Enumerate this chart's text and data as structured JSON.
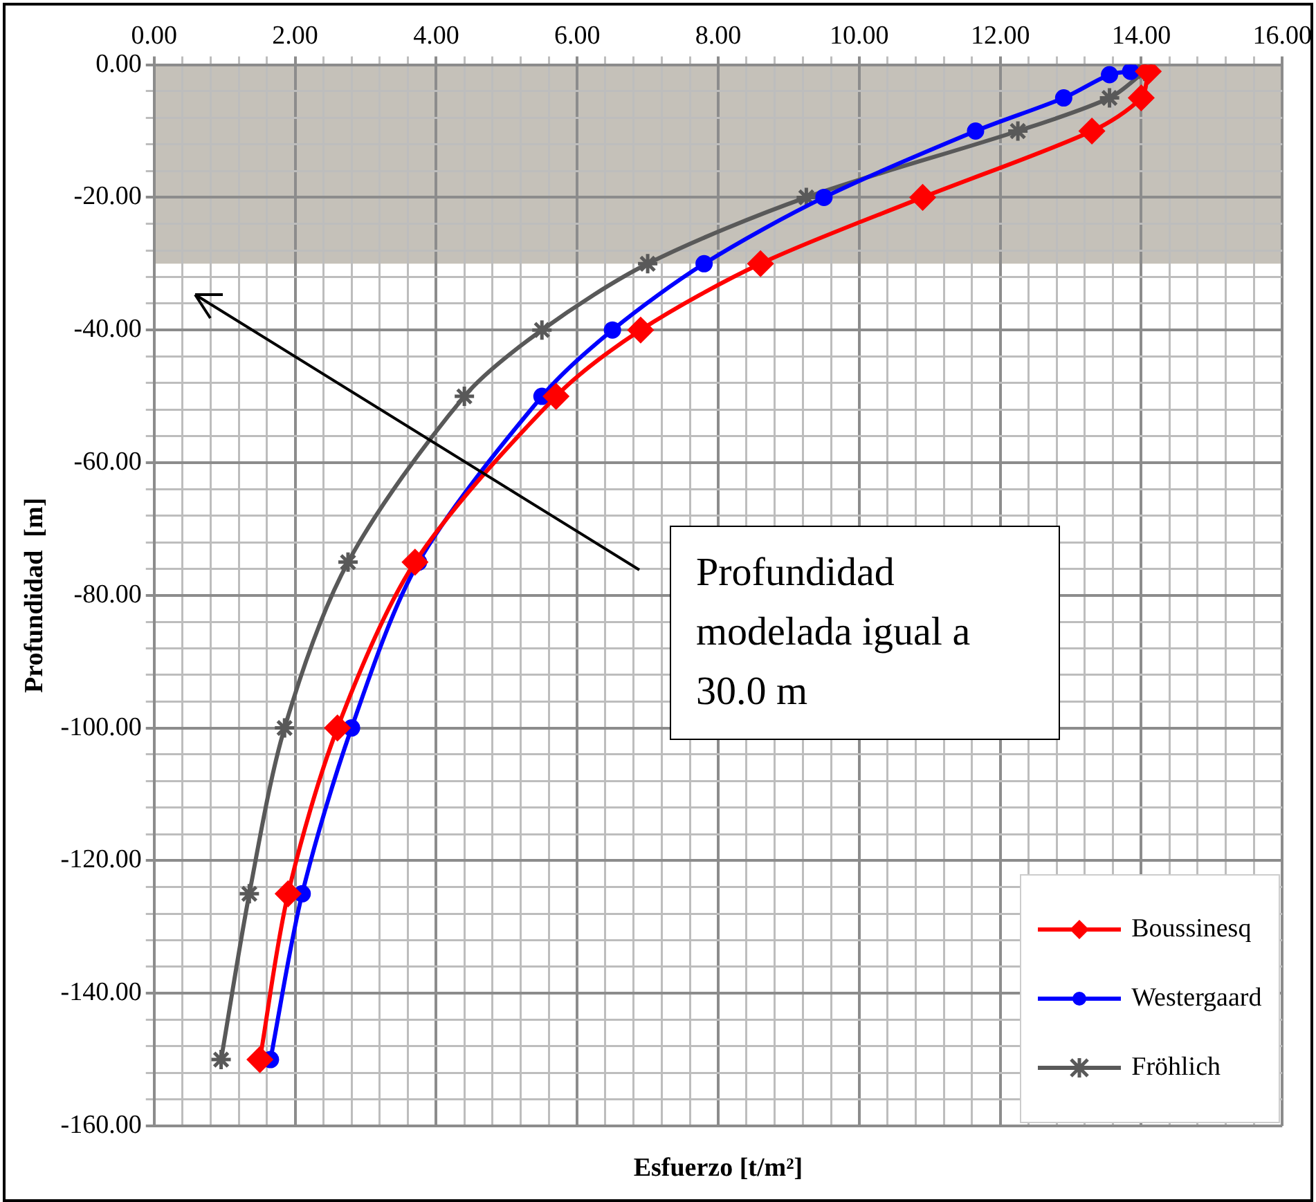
{
  "chart_data": {
    "type": "line",
    "xlabel": "Esfuerzo  [t/m²]",
    "ylabel": "Profundidad  [m]",
    "series": [
      {
        "name": "Boussinesq",
        "color": "#ff0000",
        "marker": "diamond",
        "x": [
          14.1,
          14.0,
          13.3,
          10.9,
          8.6,
          6.9,
          5.7,
          3.7,
          2.6,
          1.9,
          1.5
        ],
        "values": [
          -1,
          -5,
          -10,
          -20,
          -30,
          -40,
          -50,
          -75,
          -100,
          -125,
          -150
        ]
      },
      {
        "name": "Westergaard",
        "color": "#0000ff",
        "marker": "circle",
        "x": [
          13.85,
          13.55,
          12.9,
          11.65,
          9.5,
          7.8,
          6.5,
          5.5,
          3.75,
          2.8,
          2.1,
          1.65
        ],
        "values": [
          -1,
          -1.5,
          -5,
          -10,
          -20,
          -30,
          -40,
          -50,
          -75,
          -100,
          -125,
          -150
        ]
      },
      {
        "name": "Fröhlich",
        "color": "#595959",
        "marker": "cross",
        "x": [
          14.05,
          13.55,
          12.25,
          9.25,
          7.0,
          5.5,
          4.4,
          2.75,
          1.85,
          1.35,
          0.95
        ],
        "values": [
          -1,
          -5,
          -10,
          -20,
          -30,
          -40,
          -50,
          -75,
          -100,
          -125,
          -150
        ]
      }
    ],
    "xlim": [
      0,
      16
    ],
    "xticks": [
      {
        "value": 0,
        "label": "0.00"
      },
      {
        "value": 0.4,
        "label": null
      },
      {
        "value": 0.8,
        "label": null
      },
      {
        "value": 1.2,
        "label": null
      },
      {
        "value": 1.6,
        "label": null
      },
      {
        "value": 2,
        "label": "2.00"
      },
      {
        "value": 2.4,
        "label": null
      },
      {
        "value": 2.8,
        "label": null
      },
      {
        "value": 3.2,
        "label": null
      },
      {
        "value": 3.6,
        "label": null
      },
      {
        "value": 4,
        "label": "4.00"
      },
      {
        "value": 4.4,
        "label": null
      },
      {
        "value": 4.8,
        "label": null
      },
      {
        "value": 5.2,
        "label": null
      },
      {
        "value": 5.6,
        "label": null
      },
      {
        "value": 6,
        "label": "6.00"
      },
      {
        "value": 6.4,
        "label": null
      },
      {
        "value": 6.8,
        "label": null
      },
      {
        "value": 7.2,
        "label": null
      },
      {
        "value": 7.6,
        "label": null
      },
      {
        "value": 8,
        "label": "8.00"
      },
      {
        "value": 8.4,
        "label": null
      },
      {
        "value": 8.8,
        "label": null
      },
      {
        "value": 9.2,
        "label": null
      },
      {
        "value": 9.6,
        "label": null
      },
      {
        "value": 10,
        "label": "10.00"
      },
      {
        "value": 10.4,
        "label": null
      },
      {
        "value": 10.8,
        "label": null
      },
      {
        "value": 11.2,
        "label": null
      },
      {
        "value": 11.6,
        "label": null
      },
      {
        "value": 12,
        "label": "12.00"
      },
      {
        "value": 12.4,
        "label": null
      },
      {
        "value": 12.8,
        "label": null
      },
      {
        "value": 13.2,
        "label": null
      },
      {
        "value": 13.6,
        "label": null
      },
      {
        "value": 14,
        "label": "14.00"
      },
      {
        "value": 14.4,
        "label": null
      },
      {
        "value": 14.8,
        "label": null
      },
      {
        "value": 15.2,
        "label": null
      },
      {
        "value": 15.6,
        "label": null
      },
      {
        "value": 16,
        "label": "16.00"
      }
    ],
    "ylim": [
      -160,
      0
    ],
    "yticks": [
      {
        "value": 0,
        "label": "0.00"
      },
      {
        "value": -4,
        "label": null
      },
      {
        "value": -8,
        "label": null
      },
      {
        "value": -12,
        "label": null
      },
      {
        "value": -16,
        "label": null
      },
      {
        "value": -20,
        "label": "-20.00"
      },
      {
        "value": -24,
        "label": null
      },
      {
        "value": -28,
        "label": null
      },
      {
        "value": -32,
        "label": null
      },
      {
        "value": -36,
        "label": null
      },
      {
        "value": -40,
        "label": "-40.00"
      },
      {
        "value": -44,
        "label": null
      },
      {
        "value": -48,
        "label": null
      },
      {
        "value": -52,
        "label": null
      },
      {
        "value": -56,
        "label": null
      },
      {
        "value": -60,
        "label": "-60.00"
      },
      {
        "value": -64,
        "label": null
      },
      {
        "value": -68,
        "label": null
      },
      {
        "value": -72,
        "label": null
      },
      {
        "value": -76,
        "label": null
      },
      {
        "value": -80,
        "label": "-80.00"
      },
      {
        "value": -84,
        "label": null
      },
      {
        "value": -88,
        "label": null
      },
      {
        "value": -92,
        "label": null
      },
      {
        "value": -96,
        "label": null
      },
      {
        "value": -100,
        "label": "-100.00"
      },
      {
        "value": -104,
        "label": null
      },
      {
        "value": -108,
        "label": null
      },
      {
        "value": -112,
        "label": null
      },
      {
        "value": -116,
        "label": null
      },
      {
        "value": -120,
        "label": "-120.00"
      },
      {
        "value": -124,
        "label": null
      },
      {
        "value": -128,
        "label": null
      },
      {
        "value": -132,
        "label": null
      },
      {
        "value": -136,
        "label": null
      },
      {
        "value": -140,
        "label": "-140.00"
      },
      {
        "value": -144,
        "label": null
      },
      {
        "value": -148,
        "label": null
      },
      {
        "value": -152,
        "label": null
      },
      {
        "value": -156,
        "label": null
      },
      {
        "value": -160,
        "label": "-160.00"
      }
    ],
    "bands": [
      {
        "axis": "y",
        "from": 0,
        "to": -30,
        "color": "#c5c1b9"
      }
    ],
    "annotations": [
      "Profundidad modelada igual a 30.0 m"
    ],
    "grid": true,
    "legend": "bottom right"
  }
}
